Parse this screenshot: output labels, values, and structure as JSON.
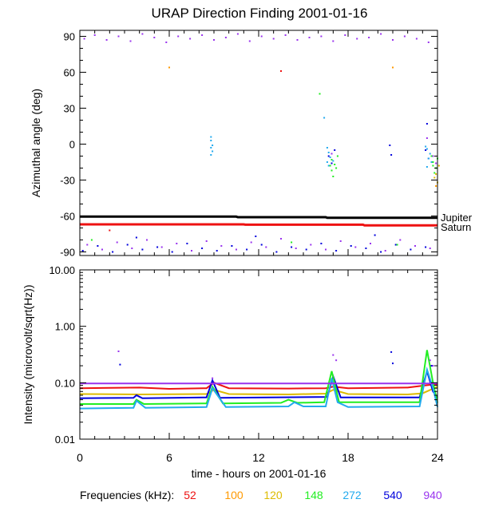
{
  "title": "URAP Direction Finding  2001-01-16",
  "xlabel": "time - hours on 2001-01-16",
  "freq_legend": {
    "label": "Frequencies (kHz):",
    "items": [
      {
        "label": "52",
        "color": "#ee1111"
      },
      {
        "label": "100",
        "color": "#ff9900"
      },
      {
        "label": "120",
        "color": "#ddbb00"
      },
      {
        "label": "148",
        "color": "#22ee22"
      },
      {
        "label": "272",
        "color": "#22aaee"
      },
      {
        "label": "540",
        "color": "#0000dd"
      },
      {
        "label": "940",
        "color": "#9933ee"
      }
    ]
  },
  "chart_data": [
    {
      "type": "scatter",
      "ylabel": "Azimuthal angle (deg)",
      "xlim": [
        0,
        24
      ],
      "ylim": [
        -93,
        95
      ],
      "xticks": [
        "0",
        "6",
        "12",
        "18",
        "24"
      ],
      "yticks": [
        "90",
        "60",
        "30",
        "0",
        "-30",
        "-60",
        "-90"
      ],
      "grid": false,
      "reference_lines": [
        {
          "name": "Jupiter",
          "color": "#000000",
          "x": [
            0,
            10.5,
            10.6,
            16.5,
            16.6,
            24
          ],
          "y": [
            -60.5,
            -60.5,
            -61,
            -61,
            -61.5,
            -61.5
          ]
        },
        {
          "name": "Saturn",
          "color": "#ee1111",
          "x": [
            0,
            11,
            11.1,
            19,
            19.1,
            24
          ],
          "y": [
            -67,
            -67,
            -67.3,
            -67.3,
            -67.8,
            -67.8
          ]
        }
      ],
      "series": [
        {
          "freq": "940",
          "color": "#9933ee",
          "points": [
            [
              0.3,
              88
            ],
            [
              1,
              91
            ],
            [
              1.8,
              87
            ],
            [
              2.6,
              90
            ],
            [
              3.4,
              86
            ],
            [
              4.2,
              92
            ],
            [
              5,
              89
            ],
            [
              5.8,
              85
            ],
            [
              6.6,
              90
            ],
            [
              7.4,
              88
            ],
            [
              8.2,
              91
            ],
            [
              9,
              87
            ],
            [
              9.8,
              89
            ],
            [
              10.6,
              92
            ],
            [
              11.4,
              86
            ],
            [
              12.2,
              90
            ],
            [
              13,
              88
            ],
            [
              13.8,
              91
            ],
            [
              14.6,
              87
            ],
            [
              15.4,
              89
            ],
            [
              16.2,
              90
            ],
            [
              17,
              86
            ],
            [
              17.8,
              91
            ],
            [
              18.6,
              88
            ],
            [
              19.4,
              89
            ],
            [
              20.2,
              92
            ],
            [
              21,
              87
            ],
            [
              21.8,
              90
            ],
            [
              22.6,
              88
            ],
            [
              23.4,
              85
            ],
            [
              0.5,
              -84
            ],
            [
              1.5,
              -88
            ],
            [
              2.5,
              -82
            ],
            [
              3.5,
              -87
            ],
            [
              4.5,
              -80
            ],
            [
              5.5,
              -86
            ],
            [
              6.5,
              -83
            ],
            [
              7.5,
              -89
            ],
            [
              8.5,
              -81
            ],
            [
              9.5,
              -85
            ],
            [
              10.5,
              -88
            ],
            [
              11.5,
              -82
            ],
            [
              12.5,
              -86
            ],
            [
              13.5,
              -79
            ],
            [
              14.5,
              -87
            ],
            [
              15.5,
              -84
            ],
            [
              16.5,
              -88
            ],
            [
              17.5,
              -81
            ],
            [
              18.5,
              -86
            ],
            [
              19.5,
              -83
            ],
            [
              20.5,
              -89
            ],
            [
              21.5,
              -80
            ],
            [
              22.5,
              -85
            ],
            [
              23.5,
              -87
            ],
            [
              23.7,
              -10
            ],
            [
              23.9,
              -16
            ],
            [
              23.3,
              5
            ],
            [
              16.9,
              -8
            ]
          ]
        },
        {
          "freq": "540",
          "color": "#0000dd",
          "points": [
            [
              0.2,
              -89
            ],
            [
              1.2,
              -85
            ],
            [
              2.2,
              -90
            ],
            [
              3.2,
              -84
            ],
            [
              4.2,
              -88
            ],
            [
              5.2,
              -86
            ],
            [
              6.2,
              -90
            ],
            [
              7.2,
              -83
            ],
            [
              8.2,
              -87
            ],
            [
              9.2,
              -89
            ],
            [
              10.2,
              -85
            ],
            [
              11.2,
              -88
            ],
            [
              12.2,
              -84
            ],
            [
              13.2,
              -90
            ],
            [
              14.2,
              -86
            ],
            [
              15.2,
              -88
            ],
            [
              16.2,
              -83
            ],
            [
              17.2,
              -89
            ],
            [
              18.2,
              -85
            ],
            [
              19.2,
              -87
            ],
            [
              20.2,
              -90
            ],
            [
              21.2,
              -84
            ],
            [
              22.2,
              -88
            ],
            [
              23.2,
              -86
            ],
            [
              3.8,
              -78
            ],
            [
              11.8,
              -77
            ],
            [
              19.8,
              -76
            ],
            [
              16.7,
              -10
            ],
            [
              16.9,
              -16
            ],
            [
              17.1,
              -5
            ],
            [
              23.2,
              -5
            ],
            [
              23.4,
              -12
            ],
            [
              23.3,
              17
            ],
            [
              20.8,
              -1
            ],
            [
              20.9,
              -9
            ]
          ]
        },
        {
          "freq": "272",
          "color": "#22aaee",
          "points": [
            [
              8.8,
              6
            ],
            [
              8.8,
              3
            ],
            [
              8.9,
              -1
            ],
            [
              8.8,
              -3
            ],
            [
              8.9,
              -6
            ],
            [
              8.8,
              -9
            ],
            [
              16.6,
              -3
            ],
            [
              16.7,
              -7
            ],
            [
              16.8,
              -11
            ],
            [
              16.6,
              -15
            ],
            [
              16.7,
              -18
            ],
            [
              17.0,
              -14
            ],
            [
              23.2,
              -2
            ],
            [
              23.3,
              -4
            ],
            [
              23.5,
              -8
            ],
            [
              23.4,
              -12
            ],
            [
              23.6,
              -15
            ],
            [
              23.3,
              -19
            ],
            [
              16.4,
              22
            ]
          ]
        },
        {
          "freq": "148",
          "color": "#22ee22",
          "points": [
            [
              16.8,
              -18
            ],
            [
              16.9,
              -22
            ],
            [
              17.1,
              -17
            ],
            [
              17.3,
              -10
            ],
            [
              17.0,
              -27
            ],
            [
              16.9,
              -13
            ],
            [
              17.2,
              -20
            ],
            [
              23.6,
              -10
            ],
            [
              23.7,
              -15
            ],
            [
              23.9,
              -20
            ],
            [
              23.8,
              -24
            ],
            [
              24.0,
              -12
            ],
            [
              23.7,
              -18
            ],
            [
              16.1,
              42
            ],
            [
              0.8,
              -80
            ],
            [
              14.2,
              -82
            ],
            [
              21.3,
              -84
            ]
          ]
        },
        {
          "freq": "120",
          "color": "#ddbb00",
          "points": [
            [
              23.9,
              -25
            ],
            [
              24.0,
              -32
            ],
            [
              24.1,
              -18
            ],
            [
              23.8,
              -28
            ]
          ]
        },
        {
          "freq": "100",
          "color": "#ff9900",
          "points": [
            [
              6.0,
              64
            ],
            [
              21.0,
              64
            ],
            [
              23.9,
              -35
            ]
          ]
        },
        {
          "freq": "52",
          "color": "#ee1111",
          "points": [
            [
              13.5,
              61
            ],
            [
              2.0,
              -72
            ]
          ]
        }
      ]
    },
    {
      "type": "line",
      "ylabel": "Intensity (microvolt/sqrt(Hz))",
      "xlim": [
        0,
        24
      ],
      "ylim": [
        0.01,
        10
      ],
      "yscale": "log",
      "xticks": [
        "0",
        "6",
        "12",
        "18",
        "24"
      ],
      "yticks": [
        "10.00",
        "1.00",
        "0.10",
        "0.01"
      ],
      "grid": false,
      "series": [
        {
          "freq": "52",
          "color": "#ee1111",
          "x": [
            0,
            4,
            6,
            8.5,
            9,
            10,
            14,
            16.5,
            17,
            18,
            22,
            23.2,
            24
          ],
          "y": [
            0.08,
            0.082,
            0.078,
            0.08,
            0.1,
            0.08,
            0.079,
            0.08,
            0.085,
            0.08,
            0.082,
            0.09,
            0.095
          ]
        },
        {
          "freq": "120",
          "color": "#ddbb00",
          "x": [
            0,
            4,
            8.5,
            9,
            10,
            14,
            16.5,
            17,
            18,
            22,
            23,
            24
          ],
          "y": [
            0.063,
            0.062,
            0.063,
            0.075,
            0.063,
            0.062,
            0.064,
            0.075,
            0.063,
            0.062,
            0.065,
            0.085
          ]
        },
        {
          "freq": "540",
          "color": "#0000dd",
          "x": [
            0,
            3.6,
            3.8,
            4.2,
            8.5,
            8.9,
            9.4,
            16.6,
            17.0,
            17.5,
            22.8,
            23.3,
            23.7,
            24
          ],
          "y": [
            0.053,
            0.054,
            0.06,
            0.053,
            0.055,
            0.11,
            0.054,
            0.056,
            0.13,
            0.055,
            0.055,
            0.16,
            0.07,
            0.055
          ]
        },
        {
          "freq": "148",
          "color": "#22ee22",
          "x": [
            0,
            3.6,
            3.8,
            4.3,
            8.5,
            8.9,
            9.6,
            13.5,
            14,
            14.6,
            16.4,
            16.9,
            17.4,
            22.8,
            23.3,
            23.7,
            24
          ],
          "y": [
            0.042,
            0.042,
            0.05,
            0.042,
            0.043,
            0.085,
            0.043,
            0.044,
            0.05,
            0.044,
            0.045,
            0.16,
            0.045,
            0.045,
            0.38,
            0.1,
            0.044
          ]
        },
        {
          "freq": "272",
          "color": "#22aaee",
          "x": [
            0,
            3.6,
            3.8,
            4.4,
            8.5,
            8.9,
            9.8,
            14,
            14.4,
            15,
            16.5,
            16.9,
            17.3,
            18,
            22.8,
            23.3,
            23.7,
            24
          ],
          "y": [
            0.035,
            0.036,
            0.048,
            0.036,
            0.037,
            0.08,
            0.037,
            0.038,
            0.045,
            0.038,
            0.038,
            0.12,
            0.045,
            0.037,
            0.038,
            0.17,
            0.08,
            0.037
          ]
        },
        {
          "freq": "940",
          "color": "#9933ee",
          "x": [
            0,
            24
          ],
          "y": [
            0.097,
            0.097
          ]
        }
      ],
      "scatter_points": [
        {
          "freq": "940",
          "color": "#9933ee",
          "points": [
            [
              2.6,
              0.36
            ],
            [
              8.9,
              0.12
            ],
            [
              17.0,
              0.31
            ],
            [
              17.2,
              0.25
            ],
            [
              23.5,
              0.25
            ],
            [
              23.7,
              0.2
            ]
          ]
        },
        {
          "freq": "540",
          "color": "#0000dd",
          "points": [
            [
              2.7,
              0.21
            ],
            [
              20.9,
              0.35
            ],
            [
              21.0,
              0.22
            ],
            [
              23.6,
              0.2
            ]
          ]
        }
      ]
    }
  ]
}
